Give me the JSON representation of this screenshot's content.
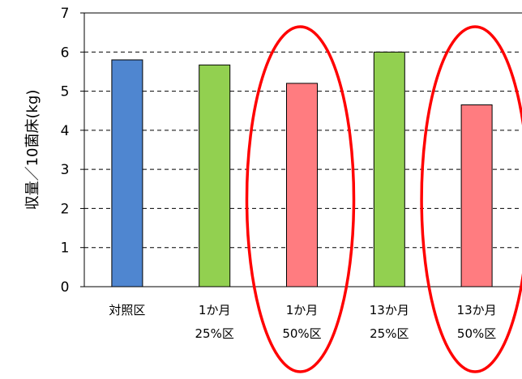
{
  "chart_data": {
    "type": "bar",
    "ylabel": "収量／10菌床(kg)",
    "ylim": [
      0,
      7
    ],
    "yticks": [
      "0",
      "1",
      "2",
      "3",
      "4",
      "5",
      "6",
      "7"
    ],
    "grid": "dashed horizontal",
    "categories": [
      {
        "line1": "対照区",
        "line2": ""
      },
      {
        "line1": "1か月",
        "line2": "25%区"
      },
      {
        "line1": "1か月",
        "line2": "50%区"
      },
      {
        "line1": "13か月",
        "line2": "25%区"
      },
      {
        "line1": "13か月",
        "line2": "50%区"
      }
    ],
    "values": [
      5.8,
      5.67,
      5.2,
      6.0,
      4.65
    ],
    "colors": [
      "#4f86d0",
      "#92d050",
      "#ff7c80",
      "#92d050",
      "#ff7c80"
    ],
    "highlighted": [
      2,
      4
    ],
    "highlight_color": "#ff0000"
  }
}
